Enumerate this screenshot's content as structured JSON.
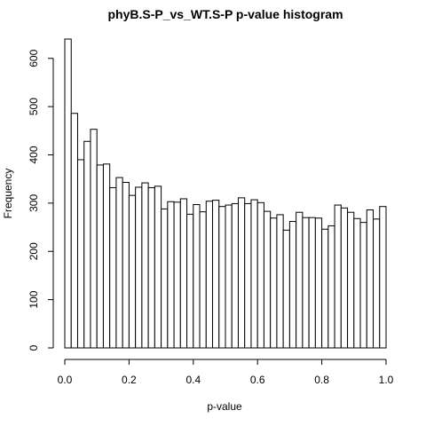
{
  "chart_data": {
    "type": "bar",
    "title": "phyB.S-P_vs_WT.S-P p-value histogram",
    "xlabel": "p-value",
    "ylabel": "Frequency",
    "xlim": [
      0,
      1
    ],
    "ylim": [
      0,
      640
    ],
    "bin_width": 0.02,
    "x_ticks": [
      "0.0",
      "0.2",
      "0.4",
      "0.6",
      "0.8",
      "1.0"
    ],
    "y_ticks": [
      "0",
      "100",
      "200",
      "300",
      "400",
      "500",
      "600"
    ],
    "bins": [
      [
        0.0,
        0.02
      ],
      [
        0.02,
        0.04
      ],
      [
        0.04,
        0.06
      ],
      [
        0.06,
        0.08
      ],
      [
        0.08,
        0.1
      ],
      [
        0.1,
        0.12
      ],
      [
        0.12,
        0.14
      ],
      [
        0.14,
        0.16
      ],
      [
        0.16,
        0.18
      ],
      [
        0.18,
        0.2
      ],
      [
        0.2,
        0.22
      ],
      [
        0.22,
        0.24
      ],
      [
        0.24,
        0.26
      ],
      [
        0.26,
        0.28
      ],
      [
        0.28,
        0.3
      ],
      [
        0.3,
        0.32
      ],
      [
        0.32,
        0.34
      ],
      [
        0.34,
        0.36
      ],
      [
        0.36,
        0.38
      ],
      [
        0.38,
        0.4
      ],
      [
        0.4,
        0.42
      ],
      [
        0.42,
        0.44
      ],
      [
        0.44,
        0.46
      ],
      [
        0.46,
        0.48
      ],
      [
        0.48,
        0.5
      ],
      [
        0.5,
        0.52
      ],
      [
        0.52,
        0.54
      ],
      [
        0.54,
        0.56
      ],
      [
        0.56,
        0.58
      ],
      [
        0.58,
        0.6
      ],
      [
        0.6,
        0.62
      ],
      [
        0.62,
        0.64
      ],
      [
        0.64,
        0.66
      ],
      [
        0.66,
        0.68
      ],
      [
        0.68,
        0.7
      ],
      [
        0.7,
        0.72
      ],
      [
        0.72,
        0.74
      ],
      [
        0.74,
        0.76
      ],
      [
        0.76,
        0.78
      ],
      [
        0.78,
        0.8
      ],
      [
        0.8,
        0.82
      ],
      [
        0.82,
        0.84
      ],
      [
        0.84,
        0.86
      ],
      [
        0.86,
        0.88
      ],
      [
        0.88,
        0.9
      ],
      [
        0.9,
        0.92
      ],
      [
        0.92,
        0.94
      ],
      [
        0.94,
        0.96
      ],
      [
        0.96,
        0.98
      ],
      [
        0.98,
        1.0
      ]
    ],
    "values": [
      640,
      486,
      390,
      428,
      453,
      379,
      381,
      332,
      353,
      343,
      316,
      333,
      342,
      332,
      335,
      288,
      303,
      302,
      309,
      277,
      297,
      282,
      304,
      306,
      293,
      296,
      299,
      311,
      299,
      307,
      301,
      283,
      269,
      276,
      244,
      262,
      281,
      270,
      270,
      269,
      246,
      253,
      296,
      290,
      281,
      268,
      260,
      286,
      267,
      293
    ],
    "bar_fill": "#ffffff",
    "bar_stroke": "#000000",
    "grid": false,
    "legend": "none"
  }
}
